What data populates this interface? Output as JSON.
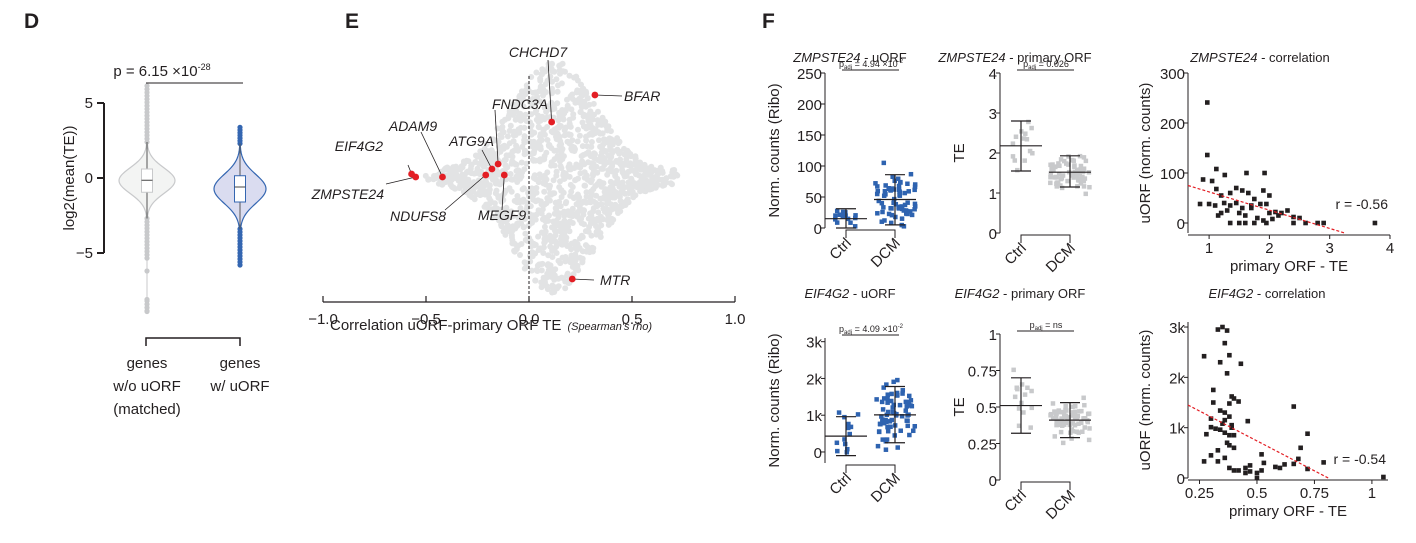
{
  "chart_data": [
    {
      "panel": "D",
      "type": "violin",
      "ylabel": "log2(mean(TE))",
      "yticks": [
        "5",
        "0",
        "−5"
      ],
      "ylim": [
        -9,
        6.5
      ],
      "pvalue": "p = 6.15 ×10",
      "pvalue_exp": "-28",
      "groups": [
        {
          "label_lines": [
            "genes",
            "w/o uORF",
            "(matched)"
          ],
          "color": "#c8c9cb",
          "fill": "#f3f4f3",
          "median": -0.15,
          "q1": -0.95,
          "q3": 0.6,
          "whisker_low": -2.7,
          "whisker_high": 2.4,
          "max": 6.3,
          "min": -8.9
        },
        {
          "label_lines": [
            "genes",
            "w/ uORF"
          ],
          "color": "#3466b1",
          "fill": "#dadcf0",
          "median": -0.6,
          "q1": -1.6,
          "q3": 0.15,
          "whisker_low": -3.4,
          "whisker_high": 2.3,
          "max": 3.5,
          "min": -5.9
        }
      ]
    },
    {
      "panel": "E",
      "type": "scatter",
      "xlabel": "Correlation uORF-primary ORF TE",
      "xlabel_note": "(Spearman's rho)",
      "xticks": [
        "−1.0",
        "−0.5",
        "0.0",
        "0.5",
        "1.0"
      ],
      "xlim": [
        -1.0,
        1.0
      ],
      "background_color": "#e2e3e4",
      "highlight_color": "#e31e24",
      "highlighted_genes": [
        {
          "gene": "CHCHD7",
          "rho": 0.11
        },
        {
          "gene": "BFAR",
          "rho": 0.32
        },
        {
          "gene": "FNDC3A",
          "rho": -0.15
        },
        {
          "gene": "ADAM9",
          "rho": -0.42
        },
        {
          "gene": "ATG9A",
          "rho": -0.18
        },
        {
          "gene": "EIF4G2",
          "rho": -0.57
        },
        {
          "gene": "ZMPSTE24",
          "rho": -0.55
        },
        {
          "gene": "NDUFS8",
          "rho": -0.21
        },
        {
          "gene": "MEGF9",
          "rho": -0.12
        },
        {
          "gene": "MTR",
          "rho": 0.21
        }
      ]
    },
    {
      "panel": "F",
      "type": "scatter",
      "title_gene": "ZMPSTE24",
      "title_suffix": " - uORF",
      "ylabel": "Norm. counts (Ribo)",
      "yticks": [
        "0",
        "50",
        "100",
        "150",
        "200",
        "250"
      ],
      "ylim": [
        0,
        250
      ],
      "categories": [
        "Ctrl",
        "DCM"
      ],
      "pvalue": "4.94 ×10",
      "pvalue_exp": "-2",
      "color": "#2e63b0",
      "groups": [
        {
          "name": "Ctrl",
          "mean": 15,
          "sd_low": 0,
          "sd_high": 31
        },
        {
          "name": "DCM",
          "mean": 46,
          "sd_low": 5,
          "sd_high": 86
        }
      ]
    },
    {
      "panel": "F",
      "type": "scatter",
      "title_gene": "ZMPSTE24",
      "title_suffix": " - primary ORF",
      "ylabel": "TE",
      "yticks": [
        "0",
        "1",
        "2",
        "3",
        "4"
      ],
      "ylim": [
        0,
        4
      ],
      "categories": [
        "Ctrl",
        "DCM"
      ],
      "pvalue": "0.026",
      "color": "#c8c9cb",
      "groups": [
        {
          "name": "Ctrl",
          "mean": 2.18,
          "sd_low": 1.55,
          "sd_high": 2.8
        },
        {
          "name": "DCM",
          "mean": 1.52,
          "sd_low": 1.15,
          "sd_high": 1.93
        }
      ]
    },
    {
      "panel": "F",
      "type": "scatter",
      "title_gene": "ZMPSTE24",
      "title_suffix": " - correlation",
      "xlabel": "primary ORF - TE",
      "ylabel": "uORF (norm. counts)",
      "xticks": [
        "1",
        "2",
        "3",
        "4"
      ],
      "yticks": [
        "0",
        "100",
        "200",
        "300"
      ],
      "xlim": [
        0.65,
        4
      ],
      "ylim": [
        -20,
        300
      ],
      "r": "r = -0.56",
      "trend": {
        "x0": 0.65,
        "y0": 75,
        "x1": 3.25,
        "y1": -20
      },
      "points": [
        [
          0.97,
          241
        ],
        [
          0.97,
          136
        ],
        [
          0.9,
          87
        ],
        [
          1.12,
          108
        ],
        [
          1.05,
          84
        ],
        [
          1.26,
          96
        ],
        [
          1.62,
          100
        ],
        [
          1.92,
          100
        ],
        [
          1.12,
          68
        ],
        [
          1.2,
          55
        ],
        [
          1.35,
          60
        ],
        [
          1.45,
          70
        ],
        [
          1.55,
          65
        ],
        [
          1.65,
          60
        ],
        [
          1.75,
          48
        ],
        [
          1.9,
          65
        ],
        [
          2.0,
          55
        ],
        [
          0.85,
          38
        ],
        [
          1.0,
          38
        ],
        [
          1.1,
          35
        ],
        [
          1.25,
          40
        ],
        [
          1.35,
          35
        ],
        [
          1.45,
          40
        ],
        [
          1.55,
          30
        ],
        [
          1.7,
          30
        ],
        [
          1.85,
          38
        ],
        [
          1.95,
          38
        ],
        [
          1.2,
          20
        ],
        [
          1.3,
          25
        ],
        [
          1.5,
          20
        ],
        [
          1.6,
          15
        ],
        [
          1.8,
          10
        ],
        [
          2.0,
          20
        ],
        [
          2.1,
          22
        ],
        [
          2.2,
          20
        ],
        [
          2.3,
          25
        ],
        [
          2.4,
          12
        ],
        [
          2.5,
          10
        ],
        [
          1.35,
          0
        ],
        [
          1.5,
          0
        ],
        [
          1.6,
          0
        ],
        [
          1.75,
          0
        ],
        [
          1.95,
          0
        ],
        [
          2.05,
          8
        ],
        [
          2.4,
          0
        ],
        [
          2.6,
          0
        ],
        [
          2.8,
          0
        ],
        [
          2.9,
          0
        ],
        [
          3.75,
          0
        ],
        [
          1.9,
          5
        ],
        [
          2.15,
          15
        ],
        [
          1.15,
          15
        ],
        [
          1.7,
          35
        ]
      ]
    },
    {
      "panel": "F",
      "type": "scatter",
      "title_gene": "EIF4G2",
      "title_suffix": " - uORF",
      "ylabel": "Norm. counts (Ribo)",
      "yticks": [
        "0",
        "1k",
        "2k",
        "3k"
      ],
      "ylim": [
        -300,
        3100
      ],
      "categories": [
        "Ctrl",
        "DCM"
      ],
      "pvalue": "4.09 ×10",
      "pvalue_exp": "-2",
      "color": "#2e63b0",
      "groups": [
        {
          "name": "Ctrl",
          "mean": 430,
          "sd_low": -100,
          "sd_high": 960
        },
        {
          "name": "DCM",
          "mean": 1010,
          "sd_low": 250,
          "sd_high": 1780
        }
      ]
    },
    {
      "panel": "F",
      "type": "scatter",
      "title_gene": "EIF4G2",
      "title_suffix": " - primary ORF",
      "ylabel": "TE",
      "yticks": [
        "0",
        "0.25",
        "0.5",
        "0.75",
        "1"
      ],
      "ylim": [
        0,
        1
      ],
      "categories": [
        "Ctrl",
        "DCM"
      ],
      "pvalue": "ns",
      "color": "#c8c9cb",
      "groups": [
        {
          "name": "Ctrl",
          "mean": 0.51,
          "sd_low": 0.32,
          "sd_high": 0.7
        },
        {
          "name": "DCM",
          "mean": 0.41,
          "sd_low": 0.29,
          "sd_high": 0.53
        }
      ]
    },
    {
      "panel": "F",
      "type": "scatter",
      "title_gene": "EIF4G2",
      "title_suffix": " - correlation",
      "xlabel": "primary ORF - TE",
      "ylabel": "uORF (norm. counts)",
      "xticks": [
        "0.25",
        "0.5",
        "0.75",
        "1"
      ],
      "yticks": [
        "0",
        "1k",
        "2k",
        "3k"
      ],
      "xlim": [
        0.2,
        1.07
      ],
      "ylim": [
        0,
        3100
      ],
      "r": "r = -0.54",
      "trend": {
        "x0": 0.2,
        "y0": 1450,
        "x1": 0.81,
        "y1": 0
      },
      "points": [
        [
          0.35,
          3000
        ],
        [
          0.33,
          2950
        ],
        [
          0.37,
          2930
        ],
        [
          0.36,
          2680
        ],
        [
          0.27,
          2420
        ],
        [
          0.38,
          2440
        ],
        [
          0.34,
          2300
        ],
        [
          0.43,
          2270
        ],
        [
          0.37,
          2080
        ],
        [
          0.31,
          1750
        ],
        [
          0.39,
          1620
        ],
        [
          0.4,
          1580
        ],
        [
          0.42,
          1520
        ],
        [
          0.31,
          1500
        ],
        [
          0.38,
          1480
        ],
        [
          0.34,
          1340
        ],
        [
          0.36,
          1300
        ],
        [
          0.38,
          1220
        ],
        [
          0.36,
          1150
        ],
        [
          0.3,
          1180
        ],
        [
          0.46,
          1130
        ],
        [
          0.35,
          1080
        ],
        [
          0.39,
          1050
        ],
        [
          0.32,
          980
        ],
        [
          0.34,
          960
        ],
        [
          0.39,
          1000
        ],
        [
          0.3,
          1010
        ],
        [
          0.36,
          900
        ],
        [
          0.38,
          850
        ],
        [
          0.4,
          850
        ],
        [
          0.28,
          870
        ],
        [
          0.37,
          700
        ],
        [
          0.38,
          650
        ],
        [
          0.4,
          600
        ],
        [
          0.33,
          550
        ],
        [
          0.3,
          450
        ],
        [
          0.36,
          400
        ],
        [
          0.27,
          330
        ],
        [
          0.33,
          330
        ],
        [
          0.38,
          200
        ],
        [
          0.4,
          150
        ],
        [
          0.42,
          150
        ],
        [
          0.45,
          200
        ],
        [
          0.47,
          250
        ],
        [
          0.5,
          100
        ],
        [
          0.52,
          150
        ],
        [
          0.53,
          300
        ],
        [
          0.47,
          130
        ],
        [
          0.45,
          100
        ],
        [
          0.58,
          220
        ],
        [
          0.6,
          200
        ],
        [
          0.62,
          270
        ],
        [
          0.66,
          280
        ],
        [
          0.66,
          1420
        ],
        [
          0.69,
          600
        ],
        [
          0.72,
          880
        ],
        [
          0.72,
          180
        ],
        [
          0.68,
          380
        ],
        [
          0.79,
          310
        ],
        [
          1.05,
          20
        ],
        [
          0.5,
          0
        ],
        [
          0.52,
          470
        ]
      ]
    }
  ]
}
